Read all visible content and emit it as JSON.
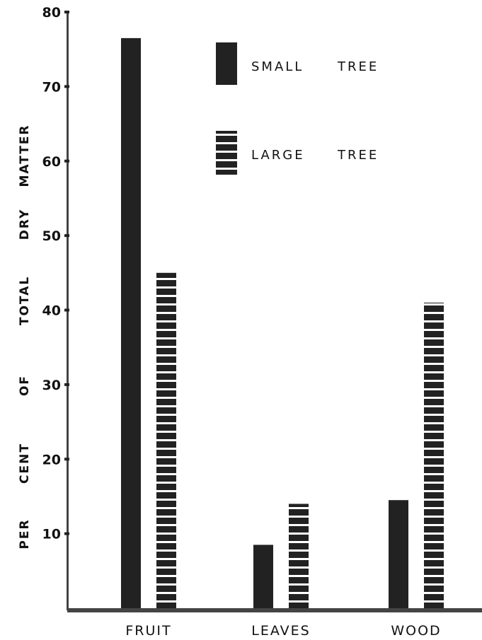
{
  "chart_data": {
    "type": "bar",
    "ylabel": "PER CENT OF TOTAL DRY MATTER",
    "ylabel_words": [
      "PER",
      "CENT",
      "OF",
      "TOTAL",
      "DRY",
      "MATTER"
    ],
    "xlabel": "",
    "ylim": [
      0,
      80
    ],
    "yticks": [
      10,
      20,
      30,
      40,
      50,
      60,
      70,
      80
    ],
    "categories": [
      "FRUIT",
      "LEAVES",
      "WOOD"
    ],
    "series": [
      {
        "name": "SMALL TREE",
        "name_words": [
          "SMALL",
          "TREE"
        ],
        "values": [
          76.5,
          8.5,
          14.5
        ],
        "pattern": "solid"
      },
      {
        "name": "LARGE TREE",
        "name_words": [
          "LARGE",
          "TREE"
        ],
        "values": [
          45,
          14,
          41
        ],
        "pattern": "horizontal-stripes"
      }
    ],
    "legend_position": "top-right",
    "grid": false,
    "colors": {
      "bar": "#222222",
      "axis": "#444444",
      "stripe_gap": "#ffffff"
    }
  }
}
